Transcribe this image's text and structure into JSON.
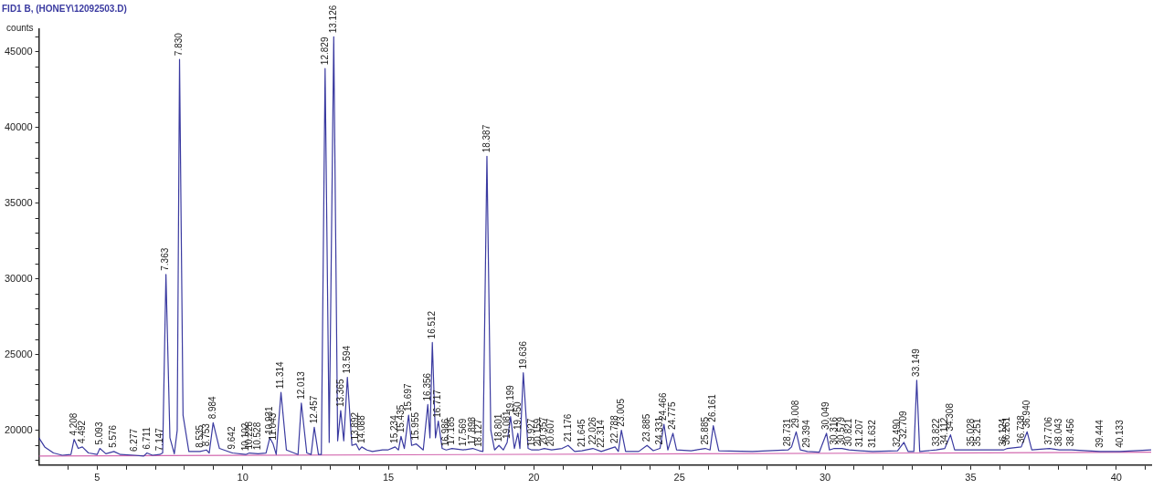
{
  "chart_data": {
    "type": "line",
    "title": "FID1 B, (HONEY\\12092503.D)",
    "ylabel": "counts",
    "xlim": [
      3,
      41.2
    ],
    "ylim": [
      17700,
      46500
    ],
    "xticks": [
      {
        "value": 4,
        "label": null
      },
      5,
      {
        "value": 6,
        "label": null
      },
      {
        "value": 7,
        "label": null
      },
      {
        "value": 8,
        "label": null
      },
      {
        "value": 9,
        "label": null
      },
      10,
      {
        "value": 11,
        "label": null
      },
      {
        "value": 12,
        "label": null
      },
      {
        "value": 13,
        "label": null
      },
      {
        "value": 14,
        "label": null
      },
      15,
      {
        "value": 16,
        "label": null
      },
      {
        "value": 17,
        "label": null
      },
      {
        "value": 18,
        "label": null
      },
      {
        "value": 19,
        "label": null
      },
      20,
      {
        "value": 21,
        "label": null
      },
      {
        "value": 22,
        "label": null
      },
      {
        "value": 23,
        "label": null
      },
      {
        "value": 24,
        "label": null
      },
      25,
      {
        "value": 26,
        "label": null
      },
      {
        "value": 27,
        "label": null
      },
      {
        "value": 28,
        "label": null
      },
      {
        "value": 29,
        "label": null
      },
      30,
      {
        "value": 31,
        "label": null
      },
      {
        "value": 32,
        "label": null
      },
      {
        "value": 33,
        "label": null
      },
      {
        "value": 34,
        "label": null
      },
      35,
      {
        "value": 36,
        "label": null
      },
      {
        "value": 37,
        "label": null
      },
      {
        "value": 38,
        "label": null
      },
      {
        "value": 39,
        "label": null
      },
      40,
      {
        "value": 41,
        "label": null
      }
    ],
    "yticks": [
      {
        "value": 18000,
        "label": null
      },
      {
        "value": 19000,
        "label": null
      },
      20000,
      {
        "value": 21000,
        "label": null
      },
      {
        "value": 22000,
        "label": null
      },
      {
        "value": 23000,
        "label": null
      },
      {
        "value": 24000,
        "label": null
      },
      25000,
      {
        "value": 26000,
        "label": null
      },
      {
        "value": 27000,
        "label": null
      },
      {
        "value": 28000,
        "label": null
      },
      {
        "value": 29000,
        "label": null
      },
      30000,
      {
        "value": 31000,
        "label": null
      },
      {
        "value": 32000,
        "label": null
      },
      {
        "value": 33000,
        "label": null
      },
      {
        "value": 34000,
        "label": null
      },
      35000,
      {
        "value": 36000,
        "label": null
      },
      {
        "value": 37000,
        "label": null
      },
      {
        "value": 38000,
        "label": null
      },
      {
        "value": 39000,
        "label": null
      },
      40000,
      {
        "value": 41000,
        "label": null
      },
      {
        "value": 42000,
        "label": null
      },
      {
        "value": 43000,
        "label": null
      },
      {
        "value": 44000,
        "label": null
      },
      45000,
      {
        "value": 46000,
        "label": null
      }
    ],
    "grid": false,
    "legend": false,
    "marker": "none",
    "series": [
      {
        "color": "#3a3aa0",
        "x": [
          3.0,
          3.2,
          3.5,
          3.8,
          4.1,
          4.208,
          4.35,
          4.492,
          4.7,
          5.0,
          5.093,
          5.3,
          5.576,
          5.8,
          6.277,
          6.6,
          6.711,
          6.9,
          7.147,
          7.25,
          7.363,
          7.5,
          7.65,
          7.75,
          7.83,
          7.95,
          8.15,
          8.535,
          8.753,
          8.85,
          8.984,
          9.2,
          9.642,
          10.102,
          10.228,
          10.528,
          10.8,
          10.931,
          11.043,
          11.15,
          11.314,
          11.5,
          11.9,
          12.013,
          12.2,
          12.35,
          12.457,
          12.6,
          12.7,
          12.829,
          12.97,
          13.126,
          13.26,
          13.365,
          13.47,
          13.594,
          13.75,
          13.892,
          14.0,
          14.088,
          14.265,
          14.453,
          14.803,
          14.982,
          15.234,
          15.35,
          15.435,
          15.55,
          15.697,
          15.8,
          15.955,
          16.2,
          16.356,
          16.43,
          16.512,
          16.62,
          16.717,
          16.85,
          16.986,
          17.185,
          17.569,
          17.898,
          18.127,
          18.25,
          18.387,
          18.52,
          18.65,
          18.801,
          18.95,
          19.081,
          19.199,
          19.33,
          19.45,
          19.52,
          19.636,
          19.8,
          19.927,
          20.159,
          20.357,
          20.607,
          20.968,
          21.176,
          21.4,
          21.645,
          22.026,
          22.314,
          22.788,
          22.9,
          23.005,
          23.15,
          23.6,
          23.885,
          24.1,
          24.331,
          24.466,
          24.6,
          24.775,
          24.9,
          25.4,
          25.885,
          26.05,
          26.161,
          26.35,
          27.5,
          28.731,
          28.85,
          29.008,
          29.15,
          29.394,
          29.8,
          30.049,
          30.15,
          30.316,
          30.579,
          30.821,
          31.207,
          31.632,
          32.49,
          32.709,
          32.85,
          33.05,
          33.149,
          33.25,
          33.822,
          34.112,
          34.308,
          34.45,
          35.028,
          35.251,
          36.124,
          36.261,
          36.738,
          36.94,
          37.1,
          37.706,
          38.043,
          38.456,
          39.444,
          40.133,
          41.2
        ],
        "values": [
          19500,
          18900,
          18500,
          18350,
          18400,
          19400,
          18800,
          18900,
          18500,
          18400,
          18800,
          18450,
          18600,
          18400,
          18350,
          18300,
          18500,
          18350,
          18400,
          18500,
          30300,
          19500,
          18450,
          20000,
          44500,
          21000,
          18600,
          18600,
          18700,
          18500,
          20500,
          18800,
          18500,
          18400,
          18500,
          18450,
          18500,
          19500,
          19100,
          18400,
          22500,
          18700,
          18400,
          21800,
          18500,
          18400,
          20200,
          18400,
          18400,
          43900,
          19200,
          46000,
          19300,
          21300,
          19300,
          23500,
          19000,
          19100,
          18700,
          18900,
          18700,
          18600,
          18700,
          18700,
          18900,
          18700,
          19600,
          18800,
          21000,
          19000,
          19100,
          18700,
          21700,
          19500,
          25800,
          19500,
          20600,
          18800,
          18700,
          18800,
          18700,
          18800,
          18650,
          18600,
          38100,
          20000,
          18700,
          19000,
          18700,
          19200,
          20900,
          18800,
          19800,
          18800,
          23800,
          18800,
          18700,
          18700,
          18800,
          18700,
          18800,
          19000,
          18600,
          18650,
          18800,
          18600,
          18900,
          18600,
          20000,
          18600,
          18600,
          19000,
          18650,
          18800,
          20400,
          18700,
          19800,
          18700,
          18650,
          18800,
          18700,
          20300,
          18650,
          18600,
          18700,
          18900,
          19900,
          18700,
          18600,
          18550,
          19800,
          18700,
          18800,
          18800,
          18700,
          18650,
          18600,
          18650,
          19200,
          18600,
          18600,
          23300,
          18600,
          18700,
          18800,
          19700,
          18700,
          18700,
          18700,
          18700,
          18800,
          18900,
          19900,
          18700,
          18800,
          18700,
          18700,
          18600,
          18600,
          18700
        ]
      },
      {
        "color": "#d36ab0",
        "x": [
          3.0,
          41.2
        ],
        "values": [
          18300,
          18550
        ]
      }
    ],
    "annotations": [
      {
        "text": "4.208",
        "x": 4.208,
        "y": 19400
      },
      {
        "text": "4.492",
        "x": 4.492,
        "y": 18900
      },
      {
        "text": "5.093",
        "x": 5.093,
        "y": 18800
      },
      {
        "text": "5.576",
        "x": 5.576,
        "y": 18600
      },
      {
        "text": "6.277",
        "x": 6.277,
        "y": 18350
      },
      {
        "text": "6.711",
        "x": 6.711,
        "y": 18500
      },
      {
        "text": "7.147",
        "x": 7.147,
        "y": 18400
      },
      {
        "text": "7.363",
        "x": 7.363,
        "y": 30300
      },
      {
        "text": "7.830",
        "x": 7.83,
        "y": 44500
      },
      {
        "text": "8.535",
        "x": 8.535,
        "y": 18600
      },
      {
        "text": "8.753",
        "x": 8.753,
        "y": 18700
      },
      {
        "text": "8.984",
        "x": 8.984,
        "y": 20500
      },
      {
        "text": "9.642",
        "x": 9.642,
        "y": 18500
      },
      {
        "text": "10.102",
        "x": 10.102,
        "y": 18400
      },
      {
        "text": "10.228",
        "x": 10.228,
        "y": 18500
      },
      {
        "text": "10.528",
        "x": 10.528,
        "y": 18450
      },
      {
        "text": "10.931",
        "x": 10.931,
        "y": 19500
      },
      {
        "text": "11.043",
        "x": 11.043,
        "y": 19100
      },
      {
        "text": "11.314",
        "x": 11.314,
        "y": 22500
      },
      {
        "text": "12.013",
        "x": 12.013,
        "y": 21800
      },
      {
        "text": "12.457",
        "x": 12.457,
        "y": 20200
      },
      {
        "text": "12.829",
        "x": 12.829,
        "y": 43900
      },
      {
        "text": "13.126",
        "x": 13.126,
        "y": 46000
      },
      {
        "text": "13.365",
        "x": 13.365,
        "y": 21300
      },
      {
        "text": "13.594",
        "x": 13.594,
        "y": 23500
      },
      {
        "text": "13.892",
        "x": 13.892,
        "y": 19100
      },
      {
        "text": "14.088",
        "x": 14.088,
        "y": 18900
      },
      {
        "text": "15.234",
        "x": 15.234,
        "y": 18900
      },
      {
        "text": "15.435",
        "x": 15.435,
        "y": 19600
      },
      {
        "text": "15.697",
        "x": 15.697,
        "y": 21000
      },
      {
        "text": "15.955",
        "x": 15.955,
        "y": 19100
      },
      {
        "text": "16.356",
        "x": 16.356,
        "y": 21700
      },
      {
        "text": "16.512",
        "x": 16.512,
        "y": 25800
      },
      {
        "text": "16.717",
        "x": 16.717,
        "y": 20600
      },
      {
        "text": "16.986",
        "x": 16.986,
        "y": 18700
      },
      {
        "text": "17.185",
        "x": 17.185,
        "y": 18800
      },
      {
        "text": "17.569",
        "x": 17.569,
        "y": 18700
      },
      {
        "text": "17.898",
        "x": 17.898,
        "y": 18800
      },
      {
        "text": "18.127",
        "x": 18.127,
        "y": 18650
      },
      {
        "text": "18.387",
        "x": 18.387,
        "y": 38100
      },
      {
        "text": "18.801",
        "x": 18.801,
        "y": 19000
      },
      {
        "text": "19.081",
        "x": 19.081,
        "y": 19200
      },
      {
        "text": "19.199",
        "x": 19.199,
        "y": 20900
      },
      {
        "text": "19.450",
        "x": 19.45,
        "y": 19800
      },
      {
        "text": "19.636",
        "x": 19.636,
        "y": 23800
      },
      {
        "text": "19.927",
        "x": 19.927,
        "y": 18700
      },
      {
        "text": "20.159",
        "x": 20.159,
        "y": 18700
      },
      {
        "text": "20.357",
        "x": 20.357,
        "y": 18800
      },
      {
        "text": "20.607",
        "x": 20.607,
        "y": 18700
      },
      {
        "text": "21.176",
        "x": 21.176,
        "y": 19000
      },
      {
        "text": "21.645",
        "x": 21.645,
        "y": 18650
      },
      {
        "text": "22.026",
        "x": 22.026,
        "y": 18800
      },
      {
        "text": "22.314",
        "x": 22.314,
        "y": 18600
      },
      {
        "text": "22.788",
        "x": 22.788,
        "y": 18900
      },
      {
        "text": "23.005",
        "x": 23.005,
        "y": 20000
      },
      {
        "text": "23.885",
        "x": 23.885,
        "y": 19000
      },
      {
        "text": "24.331",
        "x": 24.331,
        "y": 18800
      },
      {
        "text": "24.466",
        "x": 24.466,
        "y": 20400
      },
      {
        "text": "24.775",
        "x": 24.775,
        "y": 19800
      },
      {
        "text": "25.885",
        "x": 25.885,
        "y": 18800
      },
      {
        "text": "26.161",
        "x": 26.161,
        "y": 20300
      },
      {
        "text": "28.731",
        "x": 28.731,
        "y": 18700
      },
      {
        "text": "29.008",
        "x": 29.008,
        "y": 19900
      },
      {
        "text": "29.394",
        "x": 29.394,
        "y": 18600
      },
      {
        "text": "30.049",
        "x": 30.049,
        "y": 19800
      },
      {
        "text": "30.316",
        "x": 30.316,
        "y": 18800
      },
      {
        "text": "30.579",
        "x": 30.579,
        "y": 18800
      },
      {
        "text": "30.821",
        "x": 30.821,
        "y": 18700
      },
      {
        "text": "31.207",
        "x": 31.207,
        "y": 18650
      },
      {
        "text": "31.632",
        "x": 31.632,
        "y": 18600
      },
      {
        "text": "32.490",
        "x": 32.49,
        "y": 18650
      },
      {
        "text": "32.709",
        "x": 32.709,
        "y": 19200
      },
      {
        "text": "33.149",
        "x": 33.149,
        "y": 23300
      },
      {
        "text": "33.822",
        "x": 33.822,
        "y": 18700
      },
      {
        "text": "34.112",
        "x": 34.112,
        "y": 18800
      },
      {
        "text": "34.308",
        "x": 34.308,
        "y": 19700
      },
      {
        "text": "35.028",
        "x": 35.028,
        "y": 18700
      },
      {
        "text": "35.251",
        "x": 35.251,
        "y": 18700
      },
      {
        "text": "36.124",
        "x": 36.124,
        "y": 18700
      },
      {
        "text": "36.261",
        "x": 36.261,
        "y": 18800
      },
      {
        "text": "36.738",
        "x": 36.738,
        "y": 18900
      },
      {
        "text": "36.940",
        "x": 36.94,
        "y": 19900
      },
      {
        "text": "37.706",
        "x": 37.706,
        "y": 18800
      },
      {
        "text": "38.043",
        "x": 38.043,
        "y": 18700
      },
      {
        "text": "38.456",
        "x": 38.456,
        "y": 18700
      },
      {
        "text": "39.444",
        "x": 39.444,
        "y": 18600
      },
      {
        "text": "40.133",
        "x": 40.133,
        "y": 18600
      }
    ]
  }
}
